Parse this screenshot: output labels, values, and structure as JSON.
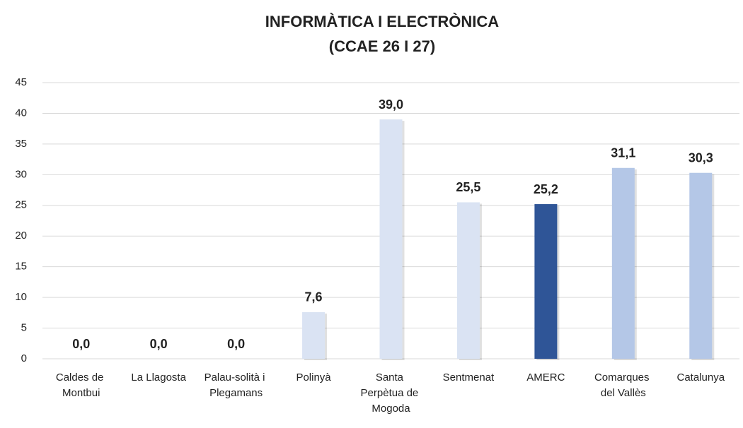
{
  "chart_data": {
    "type": "bar",
    "title": [
      "INFORMÀTICA I ELECTRÒNICA",
      "(CCAE 26 I 27)"
    ],
    "categories": [
      "Caldes de Montbui",
      "La Llagosta",
      "Palau-solità i Plegamans",
      "Polinyà",
      "Santa Perpètua de Mogoda",
      "Sentmenat",
      "AMERC",
      "Comarques del Vallès",
      "Catalunya"
    ],
    "values": [
      0,
      0,
      0,
      7.6,
      39,
      25.5,
      25.2,
      31.1,
      30.3
    ],
    "value_labels": [
      "0,0",
      "0,0",
      "0,0",
      "7,6",
      "39,0",
      "25,5",
      "25,2",
      "31,1",
      "30,3"
    ],
    "colors": [
      "#dae3f3",
      "#dae3f3",
      "#dae3f3",
      "#dae3f3",
      "#dae3f3",
      "#dae3f3",
      "#2f5597",
      "#b4c7e7",
      "#b4c7e7"
    ],
    "ylim": [
      0,
      45
    ],
    "yticks": [
      0,
      5,
      10,
      15,
      20,
      25,
      30,
      35,
      40,
      45
    ],
    "grid": true
  }
}
